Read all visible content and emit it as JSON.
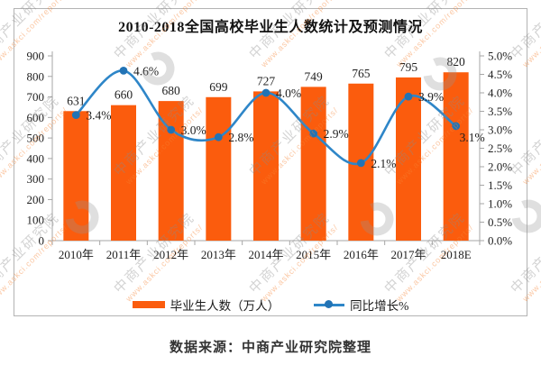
{
  "title": "2010-2018全国高校毕业生人数统计及预测情况",
  "caption": "数据来源：中商产业研究院整理",
  "watermark": {
    "text": "中商产业研究院",
    "url": "www.askci.com/reports/",
    "logo_icon": "askci-ring-logo",
    "text_color": "rgba(140,140,140,0.38)",
    "url_color": "rgba(246,130,50,0.45)",
    "logo_color": "rgba(150,150,150,0.30)"
  },
  "colors": {
    "bar": "#fb5c0d",
    "line": "#2e86c8",
    "marker": "#2273b5",
    "axis": "#a6a6a6",
    "label": "#1f1f1f"
  },
  "legend": [
    {
      "label": "毕业生人数（万人）",
      "kind": "bar"
    },
    {
      "label": "同比增长%",
      "kind": "line"
    }
  ],
  "chart_data": {
    "type": "bar",
    "combo": "bar+line",
    "title": "2010-2018全国高校毕业生人数统计及预测情况",
    "categories": [
      "2010年",
      "2011年",
      "2012年",
      "2013年",
      "2014年",
      "2015年",
      "2016年",
      "2017年",
      "2018E"
    ],
    "series": [
      {
        "name": "毕业生人数（万人）",
        "kind": "bar",
        "axis": "left",
        "values": [
          631,
          660,
          680,
          699,
          727,
          749,
          765,
          795,
          820
        ],
        "labels": [
          "631",
          "660",
          "680",
          "699",
          "727",
          "749",
          "765",
          "795",
          "820"
        ]
      },
      {
        "name": "同比增长%",
        "kind": "line",
        "axis": "right",
        "values": [
          3.4,
          4.6,
          3.0,
          2.8,
          4.0,
          2.9,
          2.1,
          3.9,
          3.1
        ],
        "labels": [
          "3.4%",
          "4.6%",
          "3.0%",
          "2.8%",
          "4.0%",
          "2.9%",
          "2.1%",
          "3.9%",
          "3.1%"
        ]
      }
    ],
    "left_axis": {
      "min": 0,
      "max": 900,
      "step": 100,
      "tick_labels": [
        "0",
        "100",
        "200",
        "300",
        "400",
        "500",
        "600",
        "700",
        "800",
        "900"
      ]
    },
    "right_axis": {
      "min": 0,
      "max": 5,
      "step": 0.5,
      "tick_labels": [
        "0.0%",
        "0.5%",
        "1.0%",
        "1.5%",
        "2.0%",
        "2.5%",
        "3.0%",
        "3.5%",
        "4.0%",
        "4.5%",
        "5.0%"
      ]
    },
    "grid": false,
    "legend_position": "bottom",
    "xlabel": "",
    "ylabel_left": "毕业生人数（万人）",
    "ylabel_right": "同比增长%"
  }
}
